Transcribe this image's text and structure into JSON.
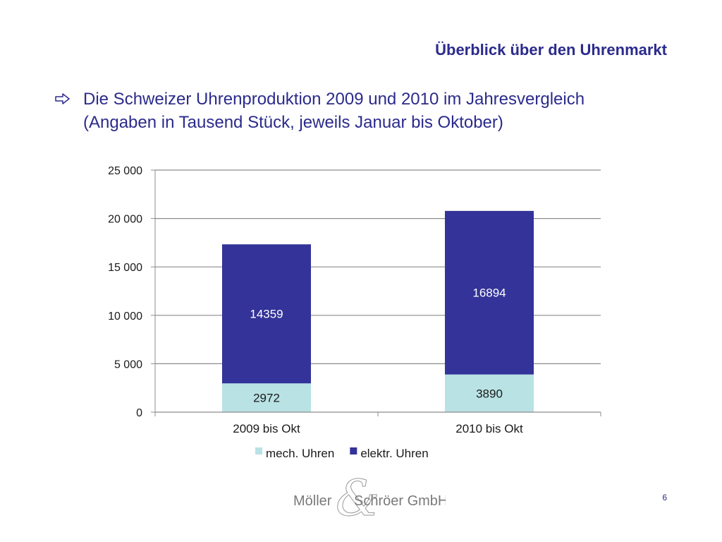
{
  "slide": {
    "title": "Überblick über den Uhrenmarkt",
    "bullet_line1": "Die Schweizer Uhrenproduktion 2009 und 2010 im Jahresvergleich",
    "bullet_line2": "(Angaben in Tausend Stück,  jeweils Januar bis Oktober)",
    "page_number": "6"
  },
  "logo": {
    "text_left": "Möller",
    "ampersand": "&",
    "text_right": "Schröer GmbH"
  },
  "chart_data": {
    "type": "bar",
    "stacked": true,
    "categories": [
      "2009 bis Okt",
      "2010 bis Okt"
    ],
    "series": [
      {
        "name": "mech. Uhren",
        "values": [
          2972,
          3890
        ],
        "color": "#b9e2e4",
        "label_color": "#1a1a1a"
      },
      {
        "name": "elektr. Uhren",
        "values": [
          14359,
          16894
        ],
        "color": "#333399",
        "label_color": "#ffffff"
      }
    ],
    "ylim": [
      0,
      25000
    ],
    "yticks": [
      0,
      5000,
      10000,
      15000,
      20000,
      25000
    ],
    "ytick_labels": [
      "0",
      "5 000",
      "10 000",
      "15 000",
      "20 000",
      "25 000"
    ],
    "grid": true,
    "legend_position": "bottom",
    "colors": {
      "grid": "#8c8c8c",
      "text": "#1a1a1a",
      "title": "#2b2b8c"
    }
  }
}
